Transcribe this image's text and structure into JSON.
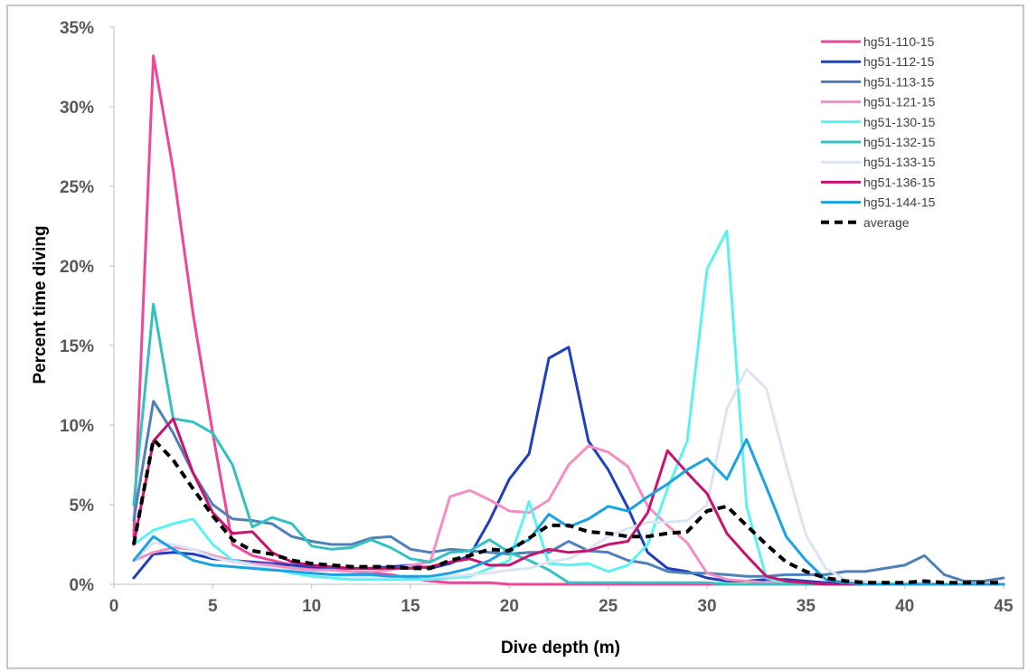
{
  "chart_data": {
    "type": "line",
    "title": "",
    "xlabel": "Dive depth (m)",
    "ylabel": "Percent time diving",
    "xlim": [
      0,
      45
    ],
    "ylim": [
      0,
      35
    ],
    "x_ticks": [
      0,
      5,
      10,
      15,
      20,
      25,
      30,
      35,
      40,
      45
    ],
    "x_tick_labels": [
      "0",
      "5",
      "10",
      "15",
      "20",
      "25",
      "30",
      "35",
      "40",
      "45"
    ],
    "y_ticks": [
      0,
      5,
      10,
      15,
      20,
      25,
      30,
      35
    ],
    "y_tick_labels": [
      "0%",
      "5%",
      "10%",
      "15%",
      "20%",
      "25%",
      "30%",
      "35%"
    ],
    "grid": false,
    "legend_position": "top-right",
    "x": [
      1,
      2,
      3,
      4,
      5,
      6,
      7,
      8,
      9,
      10,
      11,
      12,
      13,
      14,
      15,
      16,
      17,
      18,
      19,
      20,
      21,
      22,
      23,
      24,
      25,
      26,
      27,
      28,
      29,
      30,
      31,
      32,
      33,
      34,
      35,
      36,
      37,
      38,
      39,
      40,
      41,
      42,
      43,
      44,
      45
    ],
    "series": [
      {
        "name": "hg51-110-15",
        "color": "#f0469a",
        "dashed": false,
        "values": [
          3.0,
          33.2,
          26.0,
          17.0,
          9.5,
          2.5,
          1.8,
          1.5,
          1.2,
          1.0,
          0.9,
          0.8,
          0.7,
          0.6,
          0.4,
          0.2,
          0.1,
          0.1,
          0.1,
          0.0,
          0.0,
          0.0,
          0.0,
          0.0,
          0.0,
          0.0,
          0.0,
          0.0,
          0.0,
          0.0,
          0.0,
          0.0,
          0.0,
          0.0,
          0.0,
          0.0,
          0.0,
          0.0,
          0.0,
          0.0,
          0.0,
          0.0,
          0.0,
          0.0,
          0.0
        ]
      },
      {
        "name": "hg51-112-15",
        "color": "#1f3fbf",
        "dashed": false,
        "values": [
          0.4,
          1.9,
          2.0,
          1.9,
          1.6,
          1.5,
          1.4,
          1.3,
          1.2,
          1.1,
          1.0,
          1.0,
          1.0,
          1.1,
          1.2,
          1.0,
          1.3,
          1.8,
          4.0,
          6.6,
          8.2,
          14.2,
          14.9,
          9.0,
          7.2,
          4.8,
          2.0,
          1.0,
          0.8,
          0.4,
          0.2,
          0.2,
          0.3,
          0.3,
          0.2,
          0.1,
          0.1,
          0.0,
          0.0,
          0.0,
          0.0,
          0.0,
          0.0,
          0.0,
          0.0
        ]
      },
      {
        "name": "hg51-113-15",
        "color": "#4f80b8",
        "dashed": false,
        "values": [
          4.0,
          11.5,
          9.5,
          7.0,
          5.0,
          4.1,
          4.0,
          3.8,
          3.0,
          2.7,
          2.5,
          2.5,
          2.9,
          3.0,
          2.2,
          2.0,
          2.2,
          2.1,
          2.0,
          1.9,
          2.0,
          2.0,
          2.7,
          2.1,
          2.0,
          1.5,
          1.3,
          0.8,
          0.7,
          0.7,
          0.6,
          0.5,
          0.5,
          0.6,
          0.6,
          0.6,
          0.8,
          0.8,
          1.0,
          1.2,
          1.8,
          0.6,
          0.2,
          0.2,
          0.4
        ]
      },
      {
        "name": "hg51-121-15",
        "color": "#f58ec0",
        "dashed": false,
        "values": [
          1.5,
          2.0,
          2.3,
          2.2,
          1.8,
          1.5,
          1.3,
          1.2,
          1.0,
          0.9,
          0.9,
          0.8,
          0.8,
          0.9,
          1.2,
          1.4,
          5.5,
          5.9,
          5.3,
          4.6,
          4.5,
          5.3,
          7.5,
          8.7,
          8.3,
          7.4,
          4.9,
          3.7,
          2.6,
          0.7,
          0.3,
          0.2,
          0.1,
          0.1,
          0.0,
          0.0,
          0.0,
          0.0,
          0.0,
          0.0,
          0.0,
          0.0,
          0.0,
          0.0,
          0.0
        ]
      },
      {
        "name": "hg51-130-15",
        "color": "#5cf2f2",
        "dashed": false,
        "values": [
          2.5,
          3.4,
          3.8,
          4.1,
          2.5,
          1.5,
          1.2,
          1.0,
          0.7,
          0.5,
          0.4,
          0.3,
          0.3,
          0.3,
          0.3,
          0.3,
          0.4,
          0.5,
          1.0,
          1.5,
          5.2,
          1.3,
          1.2,
          1.3,
          0.8,
          1.2,
          2.5,
          6.0,
          9.0,
          19.8,
          22.2,
          4.9,
          0.4,
          0.1,
          0.0,
          0.0,
          0.0,
          0.0,
          0.0,
          0.0,
          0.0,
          0.0,
          0.0,
          0.0,
          0.0
        ]
      },
      {
        "name": "hg51-132-15",
        "color": "#33c1c1",
        "dashed": false,
        "values": [
          5.0,
          17.6,
          10.4,
          10.2,
          9.5,
          7.5,
          3.6,
          4.2,
          3.8,
          2.4,
          2.2,
          2.3,
          2.8,
          2.3,
          1.6,
          1.4,
          2.0,
          2.1,
          2.8,
          2.0,
          1.5,
          0.9,
          0.1,
          0.1,
          0.1,
          0.1,
          0.1,
          0.1,
          0.1,
          0.1,
          0.0,
          0.0,
          0.0,
          0.0,
          0.0,
          0.0,
          0.0,
          0.0,
          0.0,
          0.0,
          0.0,
          0.0,
          0.0,
          0.0,
          0.0
        ]
      },
      {
        "name": "hg51-133-15",
        "color": "#dae4f2",
        "dashed": false,
        "values": [
          1.5,
          2.6,
          2.5,
          2.2,
          1.7,
          1.4,
          1.2,
          1.0,
          0.8,
          0.7,
          0.6,
          0.5,
          0.5,
          0.5,
          0.5,
          0.5,
          0.5,
          0.6,
          0.7,
          0.9,
          1.0,
          1.4,
          1.6,
          2.2,
          3.0,
          3.5,
          3.9,
          3.9,
          4.0,
          5.0,
          11.0,
          13.5,
          12.3,
          7.5,
          3.1,
          1.0,
          0.3,
          0.2,
          0.1,
          0.1,
          0.1,
          0.0,
          0.0,
          0.0,
          0.0
        ]
      },
      {
        "name": "hg51-136-15",
        "color": "#c8146e",
        "dashed": false,
        "values": [
          2.5,
          9.0,
          10.4,
          7.0,
          4.5,
          3.2,
          3.3,
          2.0,
          1.4,
          1.2,
          1.1,
          1.0,
          1.0,
          1.0,
          1.0,
          1.1,
          1.4,
          1.6,
          1.2,
          1.2,
          1.8,
          2.2,
          2.0,
          2.1,
          2.5,
          2.7,
          4.5,
          8.4,
          7.0,
          5.7,
          3.2,
          1.8,
          0.5,
          0.2,
          0.1,
          0.0,
          0.0,
          0.0,
          0.0,
          0.0,
          0.0,
          0.0,
          0.0,
          0.0,
          0.0
        ]
      },
      {
        "name": "hg51-144-15",
        "color": "#1aa3e0",
        "dashed": false,
        "values": [
          1.5,
          3.0,
          2.2,
          1.5,
          1.2,
          1.1,
          1.0,
          0.9,
          0.8,
          0.7,
          0.6,
          0.6,
          0.6,
          0.5,
          0.5,
          0.5,
          0.7,
          1.0,
          1.5,
          2.2,
          2.8,
          4.4,
          3.6,
          4.1,
          4.9,
          4.6,
          5.5,
          6.3,
          7.2,
          7.9,
          6.6,
          9.1,
          6.1,
          3.0,
          1.5,
          0.3,
          0.1,
          0.0,
          0.0,
          0.0,
          0.0,
          0.0,
          0.0,
          0.0,
          0.0
        ]
      },
      {
        "name": "average",
        "color": "#000000",
        "dashed": true,
        "values": [
          2.5,
          9.1,
          7.8,
          6.0,
          4.3,
          2.8,
          2.1,
          1.9,
          1.5,
          1.3,
          1.2,
          1.1,
          1.1,
          1.1,
          1.0,
          1.0,
          1.5,
          1.8,
          2.2,
          2.1,
          2.9,
          3.7,
          3.7,
          3.3,
          3.2,
          3.0,
          3.0,
          3.2,
          3.3,
          4.6,
          4.9,
          3.7,
          2.5,
          1.4,
          0.8,
          0.4,
          0.2,
          0.1,
          0.1,
          0.1,
          0.2,
          0.1,
          0.1,
          0.1,
          0.1
        ]
      }
    ]
  }
}
